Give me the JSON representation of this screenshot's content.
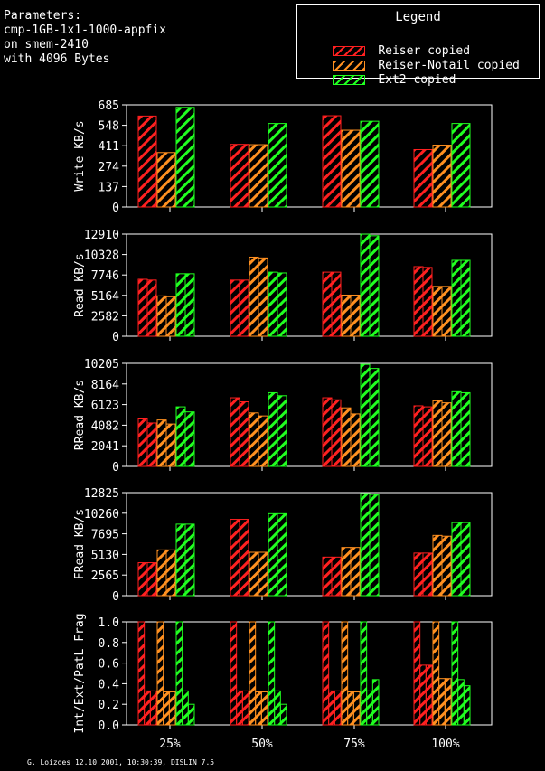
{
  "parameters": {
    "lines": [
      "Parameters:",
      "cmp-1GB-1x1-1000-appfix",
      "on smem-2410",
      "with 4096 Bytes"
    ]
  },
  "legend": {
    "title": "Legend",
    "items": [
      {
        "label": "Reiser copied",
        "color": "#ff2020"
      },
      {
        "label": "Reiser-Notail copied",
        "color": "#ff9020"
      },
      {
        "label": "Ext2 copied",
        "color": "#20ff20"
      }
    ]
  },
  "footer": "G. Loizdes 12.10.2001, 10:30:39, DISLIN 7.5",
  "chart_data": [
    {
      "type": "bar",
      "ylabel": "Write KB/s",
      "yticks": [
        "0",
        "137",
        "274",
        "411",
        "548",
        "685"
      ],
      "ylim": [
        0,
        685
      ],
      "categories": [
        "25%",
        "50%",
        "75%",
        "100%"
      ],
      "series": [
        {
          "name": "Reiser copied",
          "values": [
            [
              610
            ],
            [
              420
            ],
            [
              612
            ],
            [
              385
            ]
          ]
        },
        {
          "name": "Reiser-Notail copied",
          "values": [
            [
              365
            ],
            [
              418
            ],
            [
              515
            ],
            [
              415
            ]
          ]
        },
        {
          "name": "Ext2 copied",
          "values": [
            [
              668
            ],
            [
              560
            ],
            [
              575
            ],
            [
              560
            ]
          ]
        }
      ]
    },
    {
      "type": "bar",
      "ylabel": "Read KB/s",
      "yticks": [
        "0",
        "2582",
        "5164",
        "7746",
        "10328",
        "12910"
      ],
      "ylim": [
        0,
        12910
      ],
      "categories": [
        "25%",
        "50%",
        "75%",
        "100%"
      ],
      "series": [
        {
          "name": "Reiser copied",
          "values": [
            [
              7200,
              7100
            ],
            [
              7100,
              7100
            ],
            [
              8100,
              8100
            ],
            [
              8800,
              8700
            ]
          ]
        },
        {
          "name": "Reiser-Notail copied",
          "values": [
            [
              5100,
              5000
            ],
            [
              10000,
              9900
            ],
            [
              5200,
              5200
            ],
            [
              6300,
              6300
            ]
          ]
        },
        {
          "name": "Ext2 copied",
          "values": [
            [
              7900,
              7900
            ],
            [
              8100,
              8000
            ],
            [
              12900,
              12700
            ],
            [
              9600,
              9600
            ]
          ]
        }
      ]
    },
    {
      "type": "bar",
      "ylabel": "RRead KB/s",
      "yticks": [
        "0",
        "2041",
        "4082",
        "6123",
        "8164",
        "10205"
      ],
      "ylim": [
        0,
        10205
      ],
      "categories": [
        "25%",
        "50%",
        "75%",
        "100%"
      ],
      "series": [
        {
          "name": "Reiser copied",
          "values": [
            [
              4700,
              4300
            ],
            [
              6800,
              6400
            ],
            [
              6800,
              6600
            ],
            [
              6000,
              5900
            ]
          ]
        },
        {
          "name": "Reiser-Notail copied",
          "values": [
            [
              4600,
              4200
            ],
            [
              5300,
              5000
            ],
            [
              5800,
              5200
            ],
            [
              6500,
              6300
            ]
          ]
        },
        {
          "name": "Ext2 copied",
          "values": [
            [
              5900,
              5400
            ],
            [
              7300,
              7000
            ],
            [
              10100,
              9700
            ],
            [
              7400,
              7300
            ]
          ]
        }
      ]
    },
    {
      "type": "bar",
      "ylabel": "FRead KB/s",
      "yticks": [
        "0",
        "2565",
        "5130",
        "7695",
        "10260",
        "12825"
      ],
      "ylim": [
        0,
        12825
      ],
      "categories": [
        "25%",
        "50%",
        "75%",
        "100%"
      ],
      "series": [
        {
          "name": "Reiser copied",
          "values": [
            [
              4100,
              4100
            ],
            [
              9500,
              9500
            ],
            [
              4800,
              4800
            ],
            [
              5300,
              5300
            ]
          ]
        },
        {
          "name": "Reiser-Notail copied",
          "values": [
            [
              5700,
              5700
            ],
            [
              5400,
              5400
            ],
            [
              6000,
              6000
            ],
            [
              7500,
              7400
            ]
          ]
        },
        {
          "name": "Ext2 copied",
          "values": [
            [
              8900,
              8900
            ],
            [
              10200,
              10200
            ],
            [
              12700,
              12600
            ],
            [
              9100,
              9100
            ]
          ]
        }
      ]
    },
    {
      "type": "bar",
      "ylabel": "Int/Ext/PatL Frag",
      "yticks": [
        "0.0",
        "0.2",
        "0.4",
        "0.6",
        "0.8",
        "1.0"
      ],
      "ylim": [
        0,
        1
      ],
      "categories": [
        "25%",
        "50%",
        "75%",
        "100%"
      ],
      "series": [
        {
          "name": "Reiser copied",
          "values": [
            [
              1.0,
              0.33,
              0.33
            ],
            [
              1.0,
              0.33,
              0.33
            ],
            [
              1.0,
              0.33,
              0.33
            ],
            [
              1.0,
              0.58,
              0.58
            ]
          ]
        },
        {
          "name": "Reiser-Notail copied",
          "values": [
            [
              1.0,
              0.32,
              0.32
            ],
            [
              1.0,
              0.32,
              0.32
            ],
            [
              1.0,
              0.32,
              0.32
            ],
            [
              1.0,
              0.45,
              0.45
            ]
          ]
        },
        {
          "name": "Ext2 copied",
          "values": [
            [
              1.0,
              0.33,
              0.2
            ],
            [
              1.0,
              0.33,
              0.2
            ],
            [
              1.0,
              0.33,
              0.44
            ],
            [
              1.0,
              0.44,
              0.38
            ]
          ]
        }
      ]
    }
  ]
}
